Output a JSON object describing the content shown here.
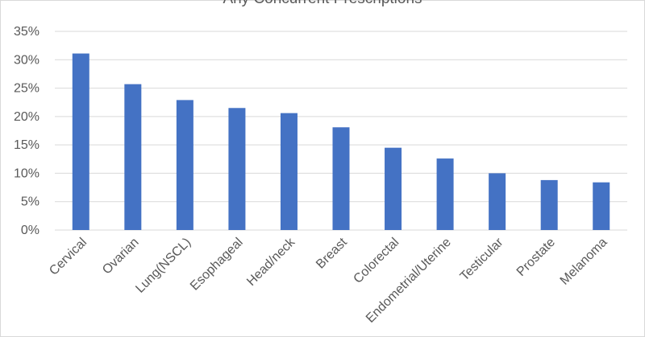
{
  "chart_data": {
    "type": "bar",
    "title": "Any Concurrent Prescriptions",
    "categories": [
      "Cervical",
      "Ovarian",
      "Lung(NSCL)",
      "Esophageal",
      "Head/neck",
      "Breast",
      "Colorectal",
      "Endometrial/Uterine",
      "Testicular",
      "Prostate",
      "Melanoma"
    ],
    "values": [
      31.1,
      25.7,
      22.9,
      21.5,
      20.6,
      18.1,
      14.5,
      12.6,
      10.0,
      8.8,
      8.4
    ],
    "y_ticks": [
      "0%",
      "5%",
      "10%",
      "15%",
      "20%",
      "25%",
      "30%",
      "35%"
    ],
    "ylim": [
      0,
      35
    ],
    "y_format": "percent",
    "grid": true,
    "legend": "none",
    "colors": {
      "bar": "#4472c4",
      "grid": "#d9d9d9",
      "text": "#595959"
    }
  }
}
